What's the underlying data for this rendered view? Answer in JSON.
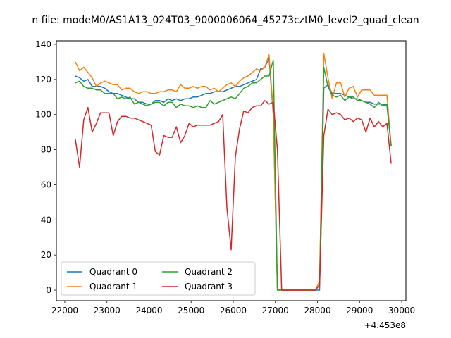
{
  "chart_data": {
    "type": "line",
    "title": "n file: modeM0/AS1A13_024T03_9000006064_45273cztM0_level2_quad_clean",
    "xlabel": "",
    "ylabel": "",
    "x_offset_label": "+4.453e8",
    "xlim": [
      21800,
      30100
    ],
    "ylim": [
      -6,
      142
    ],
    "xticks": [
      22000,
      23000,
      24000,
      25000,
      26000,
      27000,
      28000,
      29000,
      30000
    ],
    "yticks": [
      0,
      20,
      40,
      60,
      80,
      100,
      120,
      140
    ],
    "grid": false,
    "legend": {
      "placement": "lower-left",
      "columns": 2
    },
    "series": [
      {
        "name": "Quadrant 0",
        "color": "#1f77b4",
        "x": [
          22250,
          22350,
          22450,
          22550,
          22650,
          22750,
          22850,
          22950,
          23050,
          23150,
          23250,
          23350,
          23450,
          23550,
          23650,
          23750,
          23850,
          23950,
          24050,
          24150,
          24250,
          24350,
          24450,
          24550,
          24650,
          24750,
          24850,
          24950,
          25050,
          25150,
          25250,
          25350,
          25450,
          25550,
          25650,
          25750,
          25850,
          25950,
          26050,
          26150,
          26250,
          26350,
          26450,
          26550,
          26650,
          26750,
          26850,
          26950,
          27050,
          27150,
          27950,
          28050,
          28150,
          28250,
          28350,
          28450,
          28550,
          28650,
          28750,
          28850,
          28950,
          29050,
          29150,
          29250,
          29350,
          29450,
          29550,
          29650,
          29750
        ],
        "y": [
          122,
          121,
          119,
          120,
          116,
          116,
          116,
          115,
          113,
          112,
          112,
          111,
          110,
          109,
          109,
          107,
          107,
          106,
          106,
          108,
          108,
          107,
          109,
          108,
          109,
          108,
          109,
          109,
          110,
          110,
          111,
          112,
          112,
          113,
          113,
          113,
          114,
          115,
          116,
          116,
          117,
          118,
          119,
          120,
          126,
          127,
          132,
          100,
          0,
          0,
          0,
          0,
          115,
          117,
          112,
          112,
          112,
          111,
          110,
          109,
          109,
          108,
          107,
          107,
          106,
          106,
          106,
          105,
          82
        ]
      },
      {
        "name": "Quadrant 1",
        "color": "#ff7f0e",
        "x": [
          22250,
          22350,
          22450,
          22550,
          22650,
          22750,
          22850,
          22950,
          23050,
          23150,
          23250,
          23350,
          23450,
          23550,
          23650,
          23750,
          23850,
          23950,
          24050,
          24150,
          24250,
          24350,
          24450,
          24550,
          24650,
          24750,
          24850,
          24950,
          25050,
          25150,
          25250,
          25350,
          25450,
          25550,
          25650,
          25750,
          25850,
          25950,
          26050,
          26150,
          26250,
          26350,
          26450,
          26550,
          26650,
          26750,
          26850,
          26950,
          27050,
          27150,
          27950,
          28050,
          28150,
          28250,
          28350,
          28450,
          28550,
          28650,
          28750,
          28850,
          28950,
          29050,
          29150,
          29250,
          29350,
          29450,
          29550,
          29650,
          29750
        ],
        "y": [
          130,
          125,
          127,
          124,
          121,
          116,
          118,
          119,
          118,
          117,
          117,
          114,
          115,
          115,
          113,
          112,
          113,
          113,
          112,
          112,
          113,
          113,
          114,
          114,
          113,
          117,
          115,
          115,
          116,
          115,
          116,
          116,
          114,
          115,
          113,
          115,
          117,
          118,
          116,
          119,
          121,
          122,
          124,
          126,
          125,
          127,
          134,
          102,
          0,
          0,
          0,
          5,
          135,
          121,
          109,
          118,
          118,
          110,
          115,
          116,
          110,
          114,
          114,
          114,
          111,
          111,
          111,
          111,
          82
        ]
      },
      {
        "name": "Quadrant 2",
        "color": "#2ca02c",
        "x": [
          22250,
          22350,
          22450,
          22550,
          22650,
          22750,
          22850,
          22950,
          23050,
          23150,
          23250,
          23350,
          23450,
          23550,
          23650,
          23750,
          23850,
          23950,
          24050,
          24150,
          24250,
          24350,
          24450,
          24550,
          24650,
          24750,
          24850,
          24950,
          25050,
          25150,
          25250,
          25350,
          25450,
          25550,
          25650,
          25750,
          25850,
          25950,
          26050,
          26150,
          26250,
          26350,
          26450,
          26550,
          26650,
          26750,
          26850,
          26950,
          27050,
          27150,
          27950,
          28050,
          28150,
          28250,
          28350,
          28450,
          28550,
          28650,
          28750,
          28850,
          28950,
          29050,
          29150,
          29250,
          29350,
          29450,
          29550,
          29650,
          29750
        ],
        "y": [
          118,
          119,
          116,
          115,
          115,
          114,
          114,
          112,
          112,
          112,
          109,
          110,
          109,
          110,
          106,
          107,
          106,
          105,
          106,
          107,
          107,
          105,
          107,
          107,
          104,
          106,
          105,
          105,
          104,
          105,
          104,
          104,
          108,
          106,
          107,
          108,
          109,
          110,
          109,
          112,
          115,
          116,
          118,
          118,
          120,
          122,
          122,
          131,
          0,
          0,
          0,
          3,
          127,
          116,
          111,
          110,
          111,
          108,
          110,
          110,
          108,
          108,
          107,
          106,
          104,
          107,
          105,
          106,
          82
        ]
      },
      {
        "name": "Quadrant 3",
        "color": "#d62728",
        "x": [
          22250,
          22350,
          22450,
          22550,
          22650,
          22750,
          22850,
          22950,
          23050,
          23150,
          23250,
          23350,
          23450,
          23550,
          23650,
          23750,
          23850,
          23950,
          24050,
          24150,
          24250,
          24350,
          24450,
          24550,
          24650,
          24750,
          24850,
          24950,
          25050,
          25150,
          25250,
          25350,
          25450,
          25550,
          25650,
          25750,
          25850,
          25950,
          26050,
          26150,
          26250,
          26350,
          26450,
          26550,
          26650,
          26750,
          26850,
          26950,
          27050,
          27150,
          27950,
          28050,
          28150,
          28250,
          28350,
          28450,
          28550,
          28650,
          28750,
          28850,
          28950,
          29050,
          29150,
          29250,
          29350,
          29450,
          29550,
          29650,
          29750
        ],
        "y": [
          86,
          70,
          97,
          104,
          90,
          95,
          101,
          101,
          101,
          88,
          96,
          99,
          99,
          98,
          98,
          97,
          96,
          95,
          94,
          79,
          77,
          88,
          87,
          87,
          93,
          84,
          88,
          95,
          93,
          94,
          94,
          94,
          94,
          95,
          96,
          100,
          47,
          23,
          76,
          92,
          102,
          101,
          104,
          105,
          105,
          108,
          106,
          107,
          80,
          0,
          0,
          3,
          88,
          103,
          100,
          101,
          100,
          97,
          98,
          96,
          98,
          97,
          90,
          98,
          93,
          96,
          93,
          95,
          72
        ]
      }
    ]
  }
}
